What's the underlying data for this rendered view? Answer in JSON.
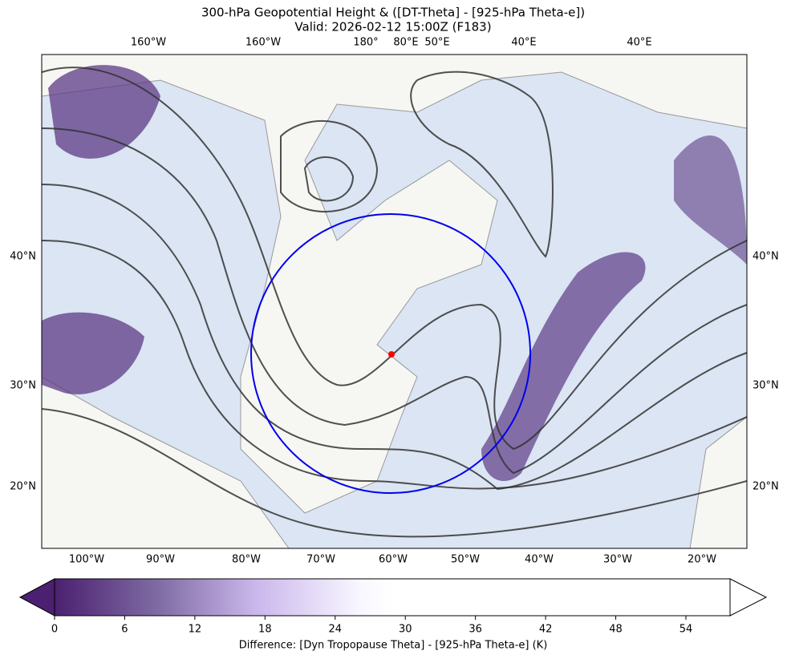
{
  "title": "300-hPa Geopotential Height & ([DT-Theta] - [925-hPa Theta-e])",
  "subtitle": "Valid: 2026-02-12 15:00Z (F183)",
  "top_labels": [
    "160°W",
    "160°W",
    "180°",
    "80°E",
    "50°E",
    "40°E",
    "40°E"
  ],
  "bottom_labels": [
    "100°W",
    "90°W",
    "80°W",
    "70°W",
    "60°W",
    "50°W",
    "40°W",
    "30°W",
    "20°W"
  ],
  "left_labels": [
    "40°N",
    "30°N",
    "20°N"
  ],
  "right_labels": [
    "40°N",
    "30°N",
    "20°N"
  ],
  "colorbar": {
    "ticks": [
      0,
      6,
      12,
      18,
      24,
      30,
      36,
      42,
      48,
      54
    ],
    "label": "Difference: [Dyn Tropopause Theta] - [925-hPa Theta-e] (K)"
  }
}
